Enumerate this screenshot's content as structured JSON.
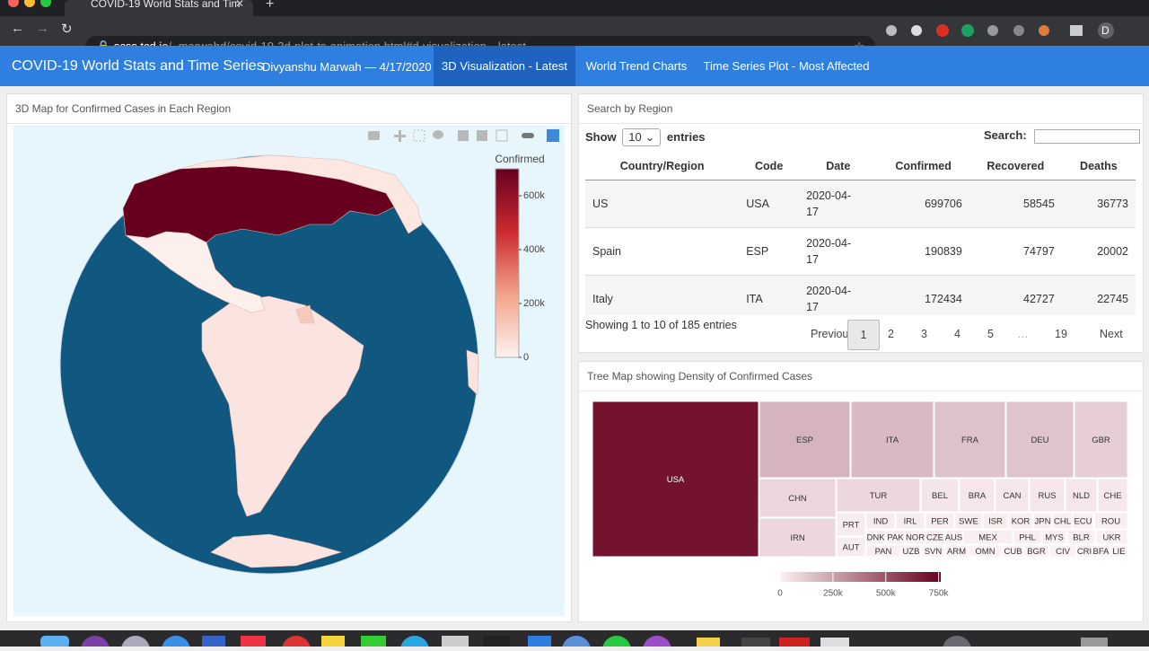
{
  "browser": {
    "tab_title": "COVID-19 World Stats and Tim",
    "url_host": "scss.tcd.ie",
    "url_path": "/~marwahd/covid-19-3d-plot-ts-animation.html#d-visualization---latest",
    "profile": "D"
  },
  "navbar": {
    "brand": "COVID-19 World Stats and Time Series",
    "author": "Divyanshu Marwah — 4/17/2020",
    "links": [
      "3D Visualization - Latest",
      "World Trend Charts",
      "Time Series Plot - Most Affected"
    ],
    "active": 0
  },
  "map_panel": {
    "title": "3D Map for Confirmed Cases in Each Region",
    "colorbar": {
      "title": "Confirmed",
      "lim": [
        0,
        700000
      ],
      "ticks": [
        {
          "value": 600000,
          "label": "600k"
        },
        {
          "value": 400000,
          "label": "400k"
        },
        {
          "value": 200000,
          "label": "200k"
        },
        0
      ],
      "colorscale": [
        "#fdf2ef",
        "#f4a38a",
        "#cb2a2f",
        "#67001f"
      ]
    },
    "regions": [
      {
        "code": "USA",
        "value": 699706
      },
      {
        "code": "CAN",
        "value": 31927
      },
      {
        "code": "MEX",
        "value": 6297
      }
    ]
  },
  "table_panel": {
    "title": "Search by Region",
    "show_label": "Show",
    "page_length": 10,
    "entries_label": "entries",
    "search_label": "Search:",
    "columns": [
      "Country/Region",
      "Code",
      "Date",
      "Confirmed",
      "Recovered",
      "Deaths"
    ],
    "rows": [
      [
        "US",
        "USA",
        "2020-04-17",
        699706,
        58545,
        36773
      ],
      [
        "Spain",
        "ESP",
        "2020-04-17",
        190839,
        74797,
        20002
      ],
      [
        "Italy",
        "ITA",
        "2020-04-17",
        172434,
        42727,
        22745
      ]
    ],
    "info": "Showing 1 to 10 of 185 entries",
    "pagination": [
      "Previous",
      "1",
      "2",
      "3",
      "4",
      "5",
      "…",
      "19",
      "Next"
    ],
    "current_page": 1
  },
  "treemap_panel": {
    "title": "Tree Map showing Density of Confirmed Cases",
    "colorbar": {
      "lim": [
        0,
        760000
      ],
      "ticks": [
        0,
        {
          "value": 250000,
          "label": "250k"
        },
        {
          "value": 500000,
          "label": "500k"
        },
        {
          "value": 750000,
          "label": "750k"
        }
      ],
      "colorscale": [
        "#fbf1f2",
        "#67001f"
      ]
    },
    "cells": [
      {
        "label": "USA",
        "value": 699706
      },
      {
        "label": "ESP",
        "value": 190839
      },
      {
        "label": "ITA",
        "value": 172434
      },
      {
        "label": "FRA",
        "value": 147969
      },
      {
        "label": "DEU",
        "value": 141397
      },
      {
        "label": "GBR",
        "value": 109769
      },
      {
        "label": "CHN",
        "value": 83760
      },
      {
        "label": "IRN",
        "value": 79494
      },
      {
        "label": "TUR",
        "value": 78546
      },
      {
        "label": "BEL",
        "value": 36138
      },
      {
        "label": "BRA",
        "value": 33682
      },
      {
        "label": "CAN",
        "value": 31927
      },
      {
        "label": "RUS",
        "value": 32008
      },
      {
        "label": "NLD",
        "value": 30619
      },
      {
        "label": "CHE",
        "value": 27404
      },
      {
        "label": "PRT",
        "value": 19022
      },
      {
        "label": "AUT",
        "value": 14595
      },
      {
        "label": "IND",
        "value": 14352
      },
      {
        "label": "IRL",
        "value": 13980
      },
      {
        "label": "PER",
        "value": 12491
      },
      {
        "label": "SWE",
        "value": 13216
      },
      {
        "label": "ISR",
        "value": 12758
      },
      {
        "label": "KOR",
        "value": 10635
      },
      {
        "label": "JPN",
        "value": 9787
      },
      {
        "label": "CHL",
        "value": 9252
      },
      {
        "label": "ECU",
        "value": 8450
      },
      {
        "label": "ROU",
        "value": 8067
      },
      {
        "label": "DNK",
        "value": 7242
      },
      {
        "label": "PAK",
        "value": 7638
      },
      {
        "label": "NOR",
        "value": 6937
      },
      {
        "label": "CZE",
        "value": 6654
      },
      {
        "label": "AUS",
        "value": 6522
      },
      {
        "label": "MEX",
        "value": 6297
      },
      {
        "label": "PHL",
        "value": 5878
      },
      {
        "label": "MYS",
        "value": 5182
      },
      {
        "label": "BLR",
        "value": 4779
      },
      {
        "label": "UKR",
        "value": 4662
      },
      {
        "label": "PAN",
        "value": 3751
      },
      {
        "label": "UZB",
        "value": 1404
      },
      {
        "label": "SVN",
        "value": 1284
      },
      {
        "label": "ARM",
        "value": 1111
      },
      {
        "label": "OMN",
        "value": 1180
      },
      {
        "label": "CUB",
        "value": 862
      },
      {
        "label": "BGR",
        "value": 894
      },
      {
        "label": "CIV",
        "value": 688
      },
      {
        "label": "CRI",
        "value": 655
      },
      {
        "label": "BFA",
        "value": 565
      },
      {
        "label": "LIE",
        "value": 81
      }
    ]
  }
}
